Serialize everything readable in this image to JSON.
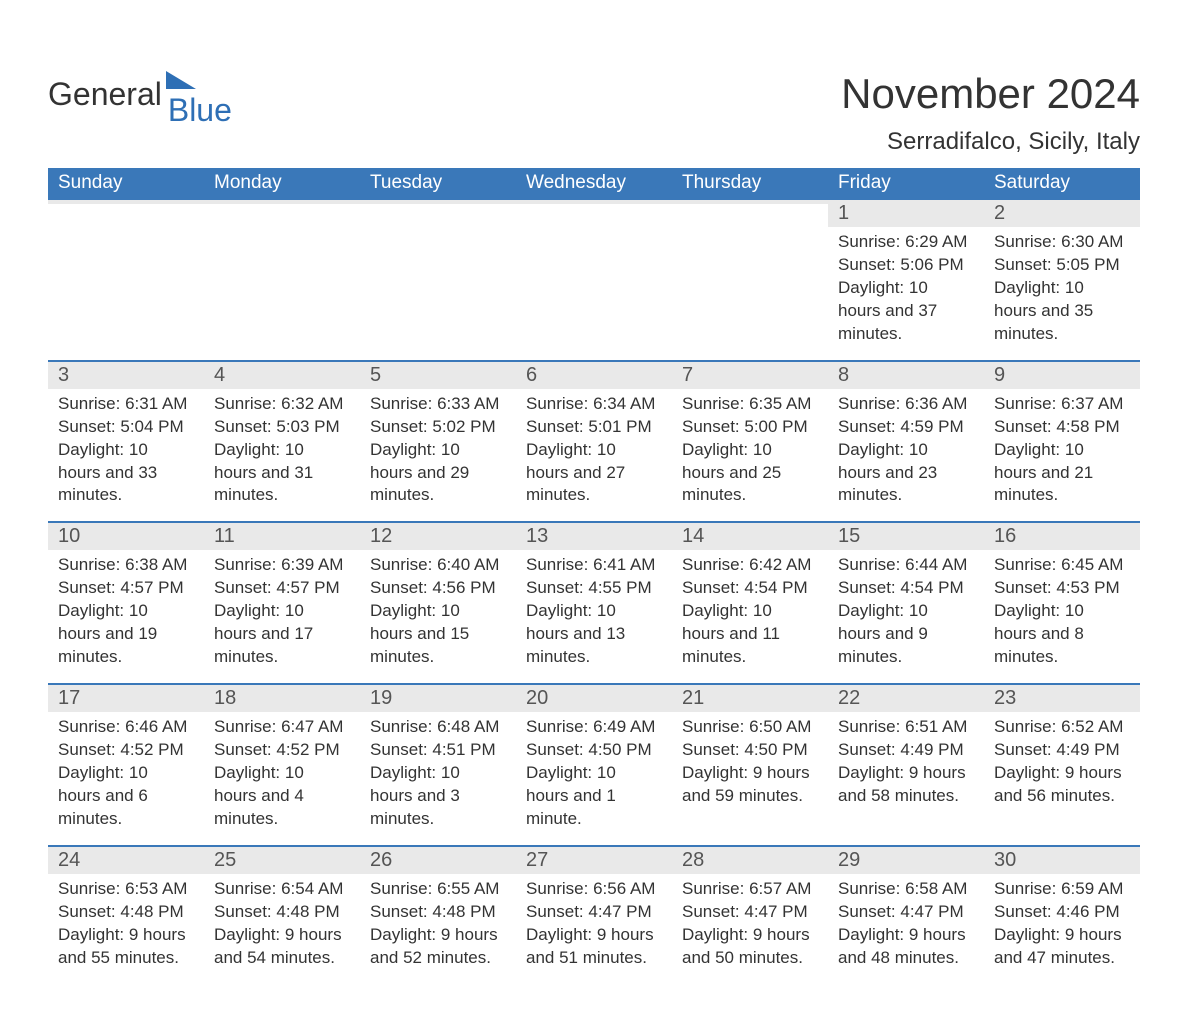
{
  "brand": {
    "part1": "General",
    "part2": "Blue",
    "accent_color": "#2e6fb5"
  },
  "title": "November 2024",
  "location": "Serradifalco, Sicily, Italy",
  "colors": {
    "header_bg": "#3a78b9",
    "header_text": "#ffffff",
    "daynum_bg": "#e9e9e9",
    "border": "#3a78b9",
    "text": "#333333",
    "background": "#ffffff"
  },
  "weekdays": [
    "Sunday",
    "Monday",
    "Tuesday",
    "Wednesday",
    "Thursday",
    "Friday",
    "Saturday"
  ],
  "weeks": [
    [
      {
        "empty": true
      },
      {
        "empty": true
      },
      {
        "empty": true
      },
      {
        "empty": true
      },
      {
        "empty": true
      },
      {
        "num": "1",
        "sunrise": "Sunrise: 6:29 AM",
        "sunset": "Sunset: 5:06 PM",
        "daylight": "Daylight: 10 hours and 37 minutes."
      },
      {
        "num": "2",
        "sunrise": "Sunrise: 6:30 AM",
        "sunset": "Sunset: 5:05 PM",
        "daylight": "Daylight: 10 hours and 35 minutes."
      }
    ],
    [
      {
        "num": "3",
        "sunrise": "Sunrise: 6:31 AM",
        "sunset": "Sunset: 5:04 PM",
        "daylight": "Daylight: 10 hours and 33 minutes."
      },
      {
        "num": "4",
        "sunrise": "Sunrise: 6:32 AM",
        "sunset": "Sunset: 5:03 PM",
        "daylight": "Daylight: 10 hours and 31 minutes."
      },
      {
        "num": "5",
        "sunrise": "Sunrise: 6:33 AM",
        "sunset": "Sunset: 5:02 PM",
        "daylight": "Daylight: 10 hours and 29 minutes."
      },
      {
        "num": "6",
        "sunrise": "Sunrise: 6:34 AM",
        "sunset": "Sunset: 5:01 PM",
        "daylight": "Daylight: 10 hours and 27 minutes."
      },
      {
        "num": "7",
        "sunrise": "Sunrise: 6:35 AM",
        "sunset": "Sunset: 5:00 PM",
        "daylight": "Daylight: 10 hours and 25 minutes."
      },
      {
        "num": "8",
        "sunrise": "Sunrise: 6:36 AM",
        "sunset": "Sunset: 4:59 PM",
        "daylight": "Daylight: 10 hours and 23 minutes."
      },
      {
        "num": "9",
        "sunrise": "Sunrise: 6:37 AM",
        "sunset": "Sunset: 4:58 PM",
        "daylight": "Daylight: 10 hours and 21 minutes."
      }
    ],
    [
      {
        "num": "10",
        "sunrise": "Sunrise: 6:38 AM",
        "sunset": "Sunset: 4:57 PM",
        "daylight": "Daylight: 10 hours and 19 minutes."
      },
      {
        "num": "11",
        "sunrise": "Sunrise: 6:39 AM",
        "sunset": "Sunset: 4:57 PM",
        "daylight": "Daylight: 10 hours and 17 minutes."
      },
      {
        "num": "12",
        "sunrise": "Sunrise: 6:40 AM",
        "sunset": "Sunset: 4:56 PM",
        "daylight": "Daylight: 10 hours and 15 minutes."
      },
      {
        "num": "13",
        "sunrise": "Sunrise: 6:41 AM",
        "sunset": "Sunset: 4:55 PM",
        "daylight": "Daylight: 10 hours and 13 minutes."
      },
      {
        "num": "14",
        "sunrise": "Sunrise: 6:42 AM",
        "sunset": "Sunset: 4:54 PM",
        "daylight": "Daylight: 10 hours and 11 minutes."
      },
      {
        "num": "15",
        "sunrise": "Sunrise: 6:44 AM",
        "sunset": "Sunset: 4:54 PM",
        "daylight": "Daylight: 10 hours and 9 minutes."
      },
      {
        "num": "16",
        "sunrise": "Sunrise: 6:45 AM",
        "sunset": "Sunset: 4:53 PM",
        "daylight": "Daylight: 10 hours and 8 minutes."
      }
    ],
    [
      {
        "num": "17",
        "sunrise": "Sunrise: 6:46 AM",
        "sunset": "Sunset: 4:52 PM",
        "daylight": "Daylight: 10 hours and 6 minutes."
      },
      {
        "num": "18",
        "sunrise": "Sunrise: 6:47 AM",
        "sunset": "Sunset: 4:52 PM",
        "daylight": "Daylight: 10 hours and 4 minutes."
      },
      {
        "num": "19",
        "sunrise": "Sunrise: 6:48 AM",
        "sunset": "Sunset: 4:51 PM",
        "daylight": "Daylight: 10 hours and 3 minutes."
      },
      {
        "num": "20",
        "sunrise": "Sunrise: 6:49 AM",
        "sunset": "Sunset: 4:50 PM",
        "daylight": "Daylight: 10 hours and 1 minute."
      },
      {
        "num": "21",
        "sunrise": "Sunrise: 6:50 AM",
        "sunset": "Sunset: 4:50 PM",
        "daylight": "Daylight: 9 hours and 59 minutes."
      },
      {
        "num": "22",
        "sunrise": "Sunrise: 6:51 AM",
        "sunset": "Sunset: 4:49 PM",
        "daylight": "Daylight: 9 hours and 58 minutes."
      },
      {
        "num": "23",
        "sunrise": "Sunrise: 6:52 AM",
        "sunset": "Sunset: 4:49 PM",
        "daylight": "Daylight: 9 hours and 56 minutes."
      }
    ],
    [
      {
        "num": "24",
        "sunrise": "Sunrise: 6:53 AM",
        "sunset": "Sunset: 4:48 PM",
        "daylight": "Daylight: 9 hours and 55 minutes."
      },
      {
        "num": "25",
        "sunrise": "Sunrise: 6:54 AM",
        "sunset": "Sunset: 4:48 PM",
        "daylight": "Daylight: 9 hours and 54 minutes."
      },
      {
        "num": "26",
        "sunrise": "Sunrise: 6:55 AM",
        "sunset": "Sunset: 4:48 PM",
        "daylight": "Daylight: 9 hours and 52 minutes."
      },
      {
        "num": "27",
        "sunrise": "Sunrise: 6:56 AM",
        "sunset": "Sunset: 4:47 PM",
        "daylight": "Daylight: 9 hours and 51 minutes."
      },
      {
        "num": "28",
        "sunrise": "Sunrise: 6:57 AM",
        "sunset": "Sunset: 4:47 PM",
        "daylight": "Daylight: 9 hours and 50 minutes."
      },
      {
        "num": "29",
        "sunrise": "Sunrise: 6:58 AM",
        "sunset": "Sunset: 4:47 PM",
        "daylight": "Daylight: 9 hours and 48 minutes."
      },
      {
        "num": "30",
        "sunrise": "Sunrise: 6:59 AM",
        "sunset": "Sunset: 4:46 PM",
        "daylight": "Daylight: 9 hours and 47 minutes."
      }
    ]
  ]
}
